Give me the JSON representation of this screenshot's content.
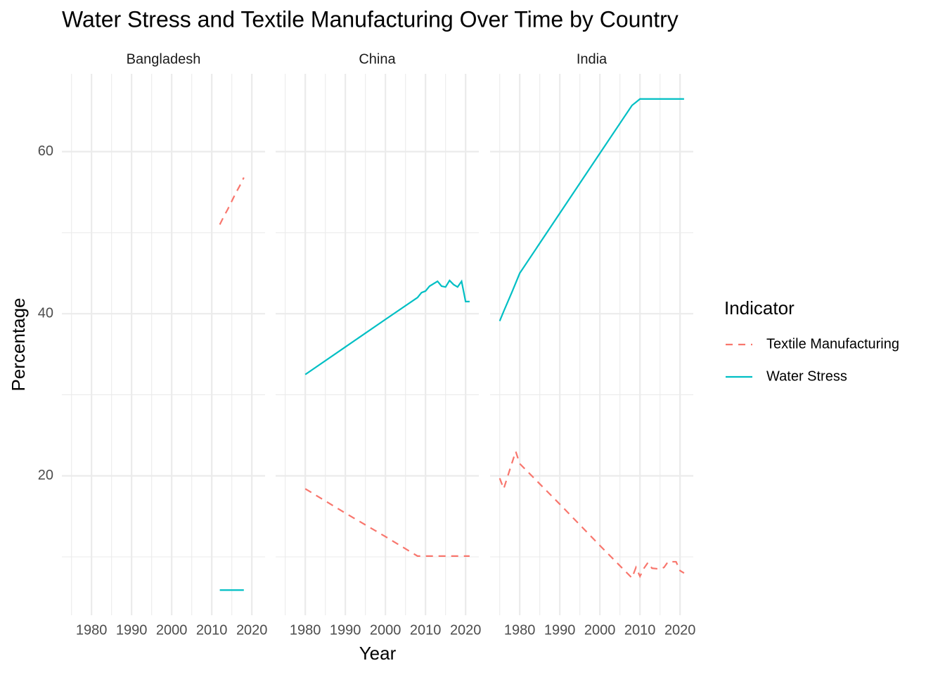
{
  "title": "Water Stress and Textile Manufacturing Over Time by Country",
  "xlabel": "Year",
  "ylabel": "Percentage",
  "legend_title": "Indicator",
  "chart_data": [
    {
      "type": "line",
      "title": "Bangladesh",
      "x": [
        2012,
        2013,
        2014,
        2015,
        2016,
        2017,
        2018
      ],
      "series": [
        {
          "name": "Textile Manufacturing",
          "color": "#F8766D",
          "dash": "dashed",
          "values": [
            51.0,
            52.0,
            52.9,
            53.9,
            54.9,
            55.8,
            56.8
          ]
        },
        {
          "name": "Water Stress",
          "color": "#00BFC4",
          "dash": "solid",
          "values": [
            5.9,
            5.9,
            5.9,
            5.9,
            5.9,
            5.9,
            5.9
          ]
        }
      ],
      "xlim": [
        1972.6,
        2023.3
      ],
      "ylim": [
        2.8,
        69.6
      ],
      "xticks": [
        1980,
        1990,
        2000,
        2010,
        2020
      ],
      "yticks": [
        20,
        40,
        60
      ],
      "xminorticks": [
        1975,
        1985,
        1995,
        2005,
        2015
      ],
      "yminorticks": [
        10,
        30,
        50
      ],
      "grid": true
    },
    {
      "type": "line",
      "title": "China",
      "x": [
        1980,
        1990,
        2000,
        2008,
        2009,
        2010,
        2011,
        2013,
        2014,
        2015,
        2016,
        2017,
        2018,
        2019,
        2020,
        2021
      ],
      "series": [
        {
          "name": "Textile Manufacturing",
          "color": "#F8766D",
          "dash": "dashed",
          "values": [
            18.4,
            15.4,
            12.5,
            10.1,
            10.1,
            10.1,
            10.1,
            10.1,
            10.1,
            10.1,
            10.1,
            10.1,
            10.1,
            10.1,
            10.1,
            10.1
          ]
        },
        {
          "name": "Water Stress",
          "color": "#00BFC4",
          "dash": "solid",
          "values": [
            32.5,
            35.9,
            39.3,
            42.0,
            42.6,
            42.8,
            43.4,
            44.0,
            43.4,
            43.3,
            44.1,
            43.6,
            43.3,
            44.0,
            41.5,
            41.5
          ]
        }
      ],
      "xlim": [
        1972.6,
        2023.3
      ],
      "ylim": [
        2.8,
        69.6
      ],
      "xticks": [
        1980,
        1990,
        2000,
        2010,
        2020
      ],
      "yticks": [
        20,
        40,
        60
      ],
      "xminorticks": [
        1975,
        1985,
        1995,
        2005,
        2015
      ],
      "yminorticks": [
        10,
        30,
        50
      ],
      "grid": true
    },
    {
      "type": "line",
      "title": "India",
      "x": [
        1975,
        1976,
        1978,
        1979,
        1980,
        1990,
        2000,
        2008,
        2009,
        2010,
        2011,
        2012,
        2013,
        2015,
        2016,
        2017,
        2018,
        2019,
        2020,
        2021
      ],
      "series": [
        {
          "name": "Textile Manufacturing",
          "color": "#F8766D",
          "dash": "dashed",
          "values": [
            19.7,
            18.4,
            21.5,
            23.0,
            21.5,
            16.5,
            11.4,
            7.4,
            8.7,
            7.6,
            8.6,
            9.3,
            8.6,
            8.5,
            8.7,
            9.4,
            9.4,
            9.4,
            8.3,
            8.0
          ]
        },
        {
          "name": "Water Stress",
          "color": "#00BFC4",
          "dash": "solid",
          "values": [
            39.1,
            40.3,
            42.6,
            43.8,
            45.0,
            52.4,
            59.8,
            65.7,
            66.1,
            66.5,
            66.5,
            66.5,
            66.5,
            66.5,
            66.5,
            66.5,
            66.5,
            66.5,
            66.5,
            66.5
          ]
        }
      ],
      "xlim": [
        1972.6,
        2023.3
      ],
      "ylim": [
        2.8,
        69.6
      ],
      "xticks": [
        1980,
        1990,
        2000,
        2010,
        2020
      ],
      "yticks": [
        20,
        40,
        60
      ],
      "xminorticks": [
        1975,
        1985,
        1995,
        2005,
        2015
      ],
      "yminorticks": [
        10,
        30,
        50
      ],
      "grid": true
    }
  ]
}
